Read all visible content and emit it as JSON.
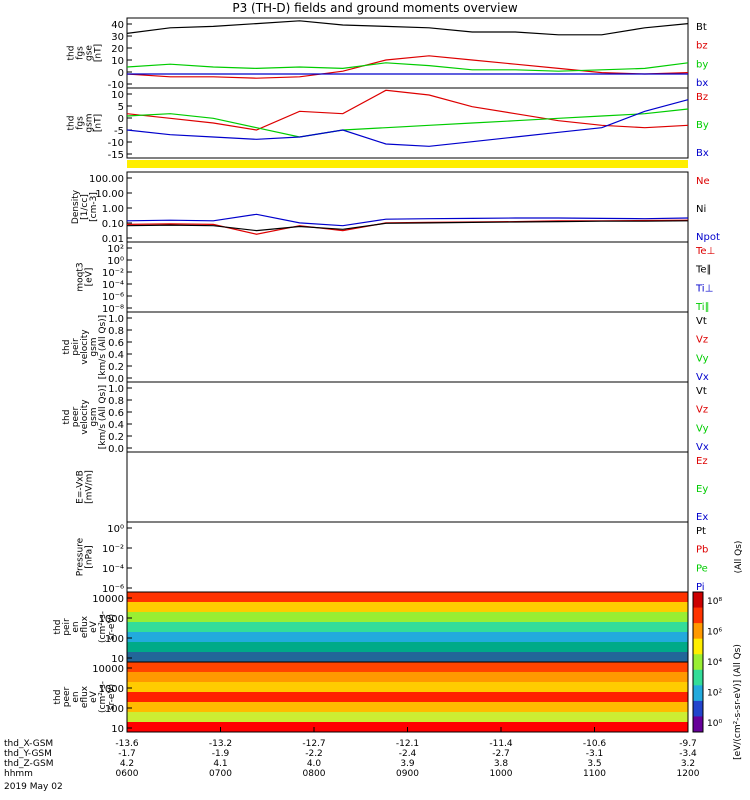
{
  "title": "P3 (TH-D) fields and ground moments overview",
  "chart_data": [
    {
      "type": "line",
      "panel": "fgs-gse",
      "ylabel": [
        "thd",
        "fgs",
        "gse",
        "[nT]"
      ],
      "yticks": [
        "40",
        "30",
        "20",
        "10",
        "0",
        "-10"
      ],
      "ylim": [
        -10,
        40
      ],
      "series": [
        {
          "name": "Bt",
          "color": "#000000",
          "values": [
            29,
            33,
            34,
            36,
            38,
            35,
            34,
            33,
            30,
            30,
            28,
            28,
            33,
            36
          ]
        },
        {
          "name": "bz",
          "color": "#dd0000",
          "values": [
            0,
            -2,
            -2,
            -3,
            -2,
            2,
            10,
            13,
            10,
            7,
            4,
            1,
            0,
            1
          ]
        },
        {
          "name": "by",
          "color": "#00cc00",
          "values": [
            5,
            7,
            5,
            4,
            5,
            4,
            8,
            6,
            3,
            3,
            2,
            3,
            4,
            8
          ]
        },
        {
          "name": "bx",
          "color": "#0000cc",
          "values": [
            0,
            0,
            0,
            0,
            0,
            0,
            0,
            0,
            0,
            0,
            0,
            0,
            0,
            0
          ]
        }
      ]
    },
    {
      "type": "line",
      "panel": "fgs-gsm",
      "ylabel": [
        "thd",
        "fgs",
        "gsm",
        "[nT]"
      ],
      "yticks": [
        "10",
        "5",
        "0",
        "-5",
        "-10",
        "-15"
      ],
      "ylim": [
        -17,
        13
      ],
      "series": [
        {
          "name": "Bz",
          "color": "#dd0000",
          "values": [
            2,
            0,
            -2,
            -5,
            3,
            2,
            12,
            10,
            5,
            2,
            -1,
            -3,
            -4,
            -3
          ]
        },
        {
          "name": "By",
          "color": "#00cc00",
          "values": [
            1,
            2,
            0,
            -4,
            -8,
            -5,
            -4,
            -3,
            -2,
            -1,
            0,
            1,
            2,
            4
          ]
        },
        {
          "name": "Bx",
          "color": "#0000cc",
          "values": [
            -5,
            -7,
            -8,
            -9,
            -8,
            -5,
            -11,
            -12,
            -10,
            -8,
            -6,
            -4,
            3,
            8
          ]
        }
      ]
    },
    {
      "type": "line",
      "panel": "density",
      "ylabel": [
        "Density",
        "[1/cc]",
        "[cm-3]"
      ],
      "yticks": [
        "100.00",
        "10.00",
        "1.00",
        "0.10",
        "0.01"
      ],
      "scale": "log",
      "ylim": [
        0.01,
        200
      ],
      "series": [
        {
          "name": "Ne",
          "color": "#dd0000",
          "values": [
            0.12,
            0.13,
            0.12,
            0.03,
            0.1,
            0.05,
            0.15,
            0.16,
            0.17,
            0.18,
            0.2,
            0.2,
            0.21,
            0.22
          ]
        },
        {
          "name": "Ni",
          "color": "#000000",
          "values": [
            0.1,
            0.11,
            0.1,
            0.05,
            0.09,
            0.06,
            0.14,
            0.15,
            0.16,
            0.17,
            0.18,
            0.19,
            0.19,
            0.2
          ]
        },
        {
          "name": "Npot",
          "color": "#0000cc",
          "values": [
            0.2,
            0.22,
            0.2,
            0.5,
            0.15,
            0.1,
            0.25,
            0.27,
            0.28,
            0.3,
            0.3,
            0.28,
            0.27,
            0.3
          ]
        }
      ]
    },
    {
      "type": "line",
      "panel": "moment-temp",
      "ylabel": [
        "moqt3",
        "[eV]"
      ],
      "yticks": [
        "10²",
        "10⁰",
        "10⁻²",
        "10⁻⁴",
        "10⁻⁶",
        "10⁻⁸"
      ],
      "scale": "log",
      "series": [
        {
          "name": "Te⊥",
          "color": "#dd0000"
        },
        {
          "name": "Te∥",
          "color": "#000000"
        },
        {
          "name": "Ti⊥",
          "color": "#0000cc"
        },
        {
          "name": "Ti∥",
          "color": "#00cc00"
        }
      ]
    },
    {
      "type": "line",
      "panel": "ion-velocity",
      "ylabel": [
        "thd",
        "peir",
        "velocity",
        "gsm",
        "[km/s (All Qs)]"
      ],
      "yticks": [
        "1.0",
        "0.8",
        "0.6",
        "0.4",
        "0.2",
        "0.0"
      ],
      "ylim": [
        0,
        1
      ],
      "series": [
        {
          "name": "Vt",
          "color": "#000000"
        },
        {
          "name": "Vz",
          "color": "#dd0000"
        },
        {
          "name": "Vy",
          "color": "#00cc00"
        },
        {
          "name": "Vx",
          "color": "#0000cc"
        }
      ]
    },
    {
      "type": "line",
      "panel": "electron-velocity",
      "ylabel": [
        "thd",
        "peer",
        "velocity",
        "gsm",
        "[km/s (All Qs)]"
      ],
      "yticks": [
        "1.0",
        "0.8",
        "0.6",
        "0.4",
        "0.2",
        "0.0"
      ],
      "ylim": [
        0,
        1
      ],
      "series": [
        {
          "name": "Vt",
          "color": "#000000"
        },
        {
          "name": "Vz",
          "color": "#dd0000"
        },
        {
          "name": "Vy",
          "color": "#00cc00"
        },
        {
          "name": "Vx",
          "color": "#0000cc"
        }
      ]
    },
    {
      "type": "line",
      "panel": "efield",
      "ylabel": [
        "E=-VxB",
        "[mV/m]"
      ],
      "series": [
        {
          "name": "Ez",
          "color": "#dd0000"
        },
        {
          "name": "Ey",
          "color": "#00cc00"
        },
        {
          "name": "Ex",
          "color": "#0000cc"
        }
      ]
    },
    {
      "type": "line",
      "panel": "pressure",
      "ylabel": [
        "Pressure",
        "[nPa]"
      ],
      "yticks": [
        "10⁰",
        "10⁻²",
        "10⁻⁴",
        "10⁻⁶"
      ],
      "scale": "log",
      "side_label": "(All Qs)",
      "series": [
        {
          "name": "Pt",
          "color": "#000000"
        },
        {
          "name": "Pb",
          "color": "#dd0000"
        },
        {
          "name": "Pe",
          "color": "#00cc00"
        },
        {
          "name": "Pi",
          "color": "#0000cc"
        }
      ]
    },
    {
      "type": "heatmap",
      "panel": "ion-spectrogram",
      "ylabel": [
        "thd",
        "peir",
        "en",
        "eflux",
        "eV",
        "(cm²-s-",
        "sr-eV)"
      ],
      "yticks": [
        "10000",
        "1000",
        "100",
        "10"
      ]
    },
    {
      "type": "heatmap",
      "panel": "electron-spectrogram",
      "ylabel": [
        "thd",
        "peer",
        "en",
        "eflux",
        "eV",
        "(cm²-s-",
        "sr-eV)"
      ],
      "yticks": [
        "10000",
        "1000",
        "100",
        "10"
      ]
    }
  ],
  "colorbar": {
    "label": "[eV/(cm²-s-sr-eV)] (All Qs)",
    "ticks": [
      "10⁸",
      "10⁶",
      "10⁴",
      "10²",
      "10⁰"
    ]
  },
  "x_axis": {
    "rows": [
      {
        "label": "thd_X-GSM",
        "values": [
          "-13.6",
          "-13.2",
          "-12.7",
          "-12.1",
          "-11.4",
          "-10.6",
          "-9.7"
        ]
      },
      {
        "label": "thd_Y-GSM",
        "values": [
          "-1.7",
          "-1.9",
          "-2.2",
          "-2.4",
          "-2.7",
          "-3.1",
          "-3.4"
        ]
      },
      {
        "label": "thd_Z-GSM",
        "values": [
          "4.2",
          "4.1",
          "4.0",
          "3.9",
          "3.8",
          "3.5",
          "3.2"
        ]
      },
      {
        "label": "hhmm",
        "values": [
          "0600",
          "0700",
          "0800",
          "0900",
          "1000",
          "1100",
          "1200"
        ]
      }
    ],
    "date": "2019 May 02"
  }
}
